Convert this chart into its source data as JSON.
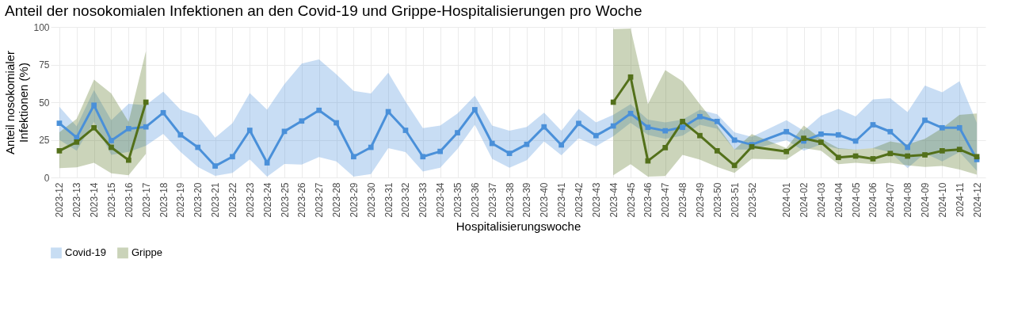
{
  "chart_data": {
    "type": "line",
    "title": "Anteil der nosokomialen Infektionen an den Covid-19 und Grippe-Hospitalisierungen pro Woche",
    "xlabel": "Hospitalisierungswoche",
    "ylabel": "Anteil nosokomialer Infektionen (%)",
    "categories": [
      "2023-12",
      "2023-13",
      "2023-14",
      "2023-15",
      "2023-16",
      "2023-17",
      "2023-18",
      "2023-19",
      "2023-20",
      "2023-21",
      "2023-22",
      "2023-23",
      "2023-24",
      "2023-25",
      "2023-26",
      "2023-27",
      "2023-28",
      "2023-29",
      "2023-30",
      "2023-31",
      "2023-32",
      "2023-33",
      "2023-34",
      "2023-35",
      "2023-36",
      "2023-37",
      "2023-38",
      "2023-39",
      "2023-40",
      "2023-41",
      "2023-42",
      "2023-43",
      "2023-44",
      "2023-45",
      "2023-46",
      "2023-47",
      "2023-48",
      "2023-49",
      "2023-50",
      "2023-51",
      "2023-52",
      null,
      "2024-01",
      "2024-02",
      "2024-03",
      "2024-04",
      "2024-05",
      "2024-06",
      "2024-07",
      "2024-08",
      "2024-09",
      "2024-10",
      "2024-11",
      "2024-12"
    ],
    "series": [
      {
        "name": "Covid-19",
        "color": "#4a90d9",
        "values": [
          36,
          26.5,
          48,
          24.5,
          32.4,
          33.6,
          43,
          28.3,
          20,
          7.6,
          13.8,
          31.3,
          9.7,
          30.6,
          37.5,
          44.6,
          36.3,
          13.8,
          20,
          43.7,
          31.3,
          13.8,
          17.3,
          29.7,
          45,
          22.6,
          16,
          22,
          33.6,
          21.6,
          35.9,
          27.8,
          34.2,
          42.5,
          33.3,
          31,
          33.3,
          40.4,
          37.2,
          24.8,
          21.8,
          null,
          30.4,
          24.2,
          28.8,
          28.3,
          24.2,
          35,
          30.4,
          20,
          38,
          33,
          33,
          11.9
        ],
        "upper": [
          47,
          34,
          58,
          38,
          49,
          48,
          57,
          45,
          41,
          26.5,
          36,
          56,
          45,
          62,
          75.6,
          78.4,
          68.5,
          57.5,
          55.8,
          69.6,
          50.4,
          32.7,
          34.5,
          42.5,
          54.3,
          34.5,
          31,
          33.6,
          43,
          31,
          45.5,
          36.6,
          41.6,
          48.7,
          38.4,
          36.6,
          38.4,
          45,
          42,
          30,
          27,
          null,
          38,
          31,
          41,
          45.5,
          40.5,
          51.9,
          52.6,
          43.4,
          61,
          56.6,
          64,
          36.3
        ],
        "lower": [
          25,
          17.7,
          37,
          15,
          17,
          21,
          29,
          17,
          7,
          1,
          3,
          12,
          0.5,
          9,
          8.5,
          13.6,
          10.6,
          0.5,
          2.3,
          19.5,
          16.8,
          4,
          6.5,
          19,
          35,
          12.4,
          6.5,
          11.5,
          24,
          14.7,
          26,
          20.7,
          27.4,
          36.3,
          28.3,
          25.7,
          27.8,
          35,
          32.4,
          18.6,
          18.6,
          null,
          24.8,
          17.7,
          22,
          19,
          18.6,
          19.5,
          16.8,
          6.2,
          16,
          10.6,
          16.8,
          4.4
        ]
      },
      {
        "name": "Grippe",
        "color": "#53701a",
        "values": [
          17.7,
          23.5,
          33,
          20,
          11.5,
          50,
          null,
          null,
          null,
          null,
          null,
          null,
          null,
          null,
          null,
          null,
          null,
          null,
          null,
          null,
          null,
          null,
          null,
          null,
          null,
          null,
          null,
          null,
          null,
          null,
          null,
          null,
          50,
          66.7,
          11,
          19.8,
          37.2,
          27.8,
          17.7,
          8,
          20.4,
          null,
          17.2,
          26,
          23.4,
          13.3,
          14.2,
          12.4,
          15.9,
          14.2,
          15,
          17.7,
          18.6,
          13.8
        ],
        "upper": [
          30,
          39,
          65,
          55.8,
          37,
          84,
          null,
          null,
          null,
          null,
          null,
          null,
          null,
          null,
          null,
          null,
          null,
          null,
          null,
          null,
          null,
          null,
          null,
          null,
          null,
          null,
          null,
          null,
          null,
          null,
          null,
          null,
          98.6,
          99,
          48.7,
          71.3,
          64,
          48.7,
          34.5,
          18.6,
          28.8,
          null,
          19.5,
          34.5,
          25.7,
          19.5,
          18.6,
          19.5,
          23.9,
          22,
          25.7,
          32.7,
          41.6,
          42.5
        ],
        "lower": [
          6.2,
          6.7,
          9.7,
          2.7,
          1.4,
          15.6,
          null,
          null,
          null,
          null,
          null,
          null,
          null,
          null,
          null,
          null,
          null,
          null,
          null,
          null,
          null,
          null,
          null,
          null,
          null,
          null,
          null,
          null,
          null,
          null,
          null,
          null,
          1.4,
          8.8,
          0.5,
          0.9,
          15,
          11.9,
          7,
          3,
          12.4,
          null,
          11.9,
          19.5,
          17.7,
          8.8,
          9.7,
          8.8,
          9.7,
          8,
          7,
          7.6,
          5.3,
          1.8
        ]
      }
    ],
    "ylim": [
      0,
      100
    ],
    "yticks": [
      0,
      25,
      50,
      75,
      100
    ],
    "grid": true,
    "legend": "bottom",
    "marker": "square",
    "line_style": "solid"
  }
}
